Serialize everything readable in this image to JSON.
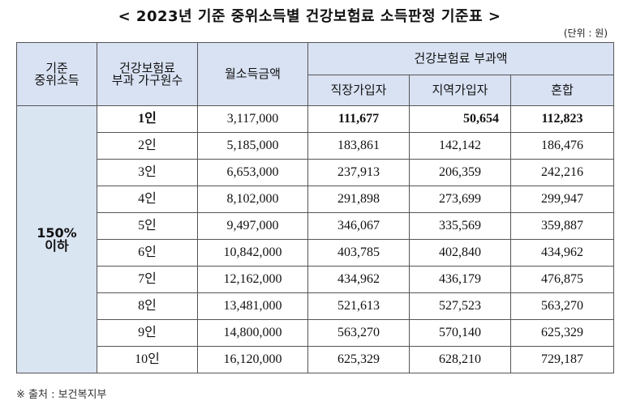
{
  "title": "< 2023년 기준 중위소득별 건강보험료 소득판정 기준표 >",
  "unit": "(단위 : 원)",
  "headers": {
    "median_income": "기준\n중위소득",
    "household": "건강보험료\n부과 가구원수",
    "monthly_income": "월소득금액",
    "premium": "건강보험료 부과액",
    "employee": "직장가입자",
    "regional": "지역가입자",
    "mixed": "혼합"
  },
  "group_label": "150%\n이하",
  "rows": [
    {
      "persons": "1인",
      "income": "3,117,000",
      "employee": "111,677",
      "regional": "50,654",
      "mixed": "112,823"
    },
    {
      "persons": "2인",
      "income": "5,185,000",
      "employee": "183,861",
      "regional": "142,142",
      "mixed": "186,476"
    },
    {
      "persons": "3인",
      "income": "6,653,000",
      "employee": "237,913",
      "regional": "206,359",
      "mixed": "242,216"
    },
    {
      "persons": "4인",
      "income": "8,102,000",
      "employee": "291,898",
      "regional": "273,699",
      "mixed": "299,947"
    },
    {
      "persons": "5인",
      "income": "9,497,000",
      "employee": "346,067",
      "regional": "335,569",
      "mixed": "359,887"
    },
    {
      "persons": "6인",
      "income": "10,842,000",
      "employee": "403,785",
      "regional": "402,840",
      "mixed": "434,962"
    },
    {
      "persons": "7인",
      "income": "12,162,000",
      "employee": "434,962",
      "regional": "436,179",
      "mixed": "476,875"
    },
    {
      "persons": "8인",
      "income": "13,481,000",
      "employee": "521,613",
      "regional": "527,523",
      "mixed": "563,270"
    },
    {
      "persons": "9인",
      "income": "14,800,000",
      "employee": "563,270",
      "regional": "570,140",
      "mixed": "625,329"
    },
    {
      "persons": "10인",
      "income": "16,120,000",
      "employee": "625,329",
      "regional": "628,210",
      "mixed": "729,187"
    }
  ],
  "footer": "※ 출처 : 보건복지부"
}
